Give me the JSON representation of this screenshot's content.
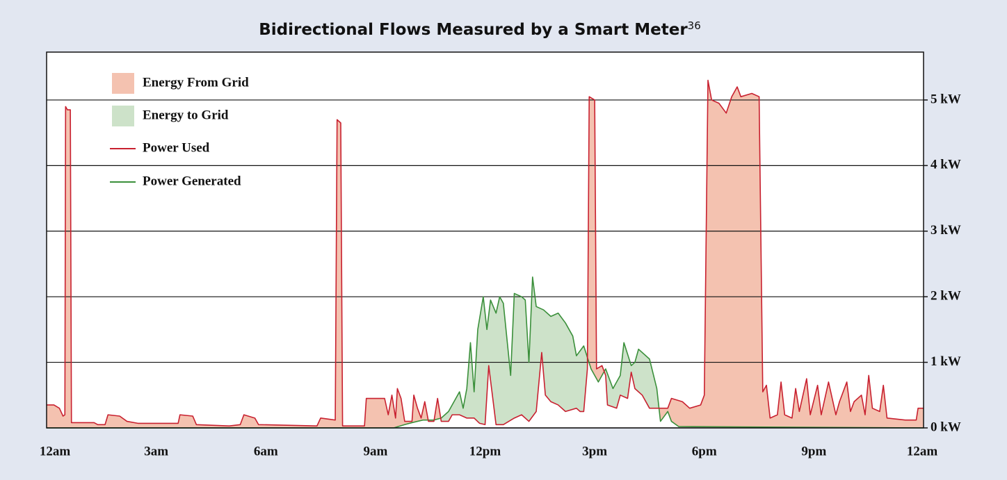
{
  "chart_data": {
    "type": "line",
    "title": "Bidirectional Flows Measured by a Smart Meter",
    "title_note": "36",
    "xlim": [
      0,
      24
    ],
    "xticks": [
      {
        "value": 0,
        "label": "12am"
      },
      {
        "value": 3,
        "label": "3am"
      },
      {
        "value": 6,
        "label": "6am"
      },
      {
        "value": 9,
        "label": "9am"
      },
      {
        "value": 12,
        "label": "12pm"
      },
      {
        "value": 15,
        "label": "3pm"
      },
      {
        "value": 18,
        "label": "6pm"
      },
      {
        "value": 21,
        "label": "9pm"
      },
      {
        "value": 24,
        "label": "12am"
      }
    ],
    "ylim": [
      0,
      5.73
    ],
    "yticks": [
      {
        "value": 0,
        "label": "0 kW"
      },
      {
        "value": 1,
        "label": "1 kW"
      },
      {
        "value": 2,
        "label": "2 kW"
      },
      {
        "value": 3,
        "label": "3 kW"
      },
      {
        "value": 4,
        "label": "4 kW"
      },
      {
        "value": 5,
        "label": "5 kW"
      }
    ],
    "grid": true,
    "areas": [
      {
        "name": "Energy From Grid",
        "color": "#f4c2b0"
      },
      {
        "name": "Energy to Grid",
        "color": "#cde2c9"
      }
    ],
    "series": [
      {
        "name": "Power Used",
        "color": "#c8202f",
        "x": [
          0,
          0.2,
          0.35,
          0.45,
          0.5,
          0.52,
          0.57,
          0.65,
          0.68,
          1.3,
          1.4,
          1.6,
          1.68,
          2.0,
          2.2,
          2.5,
          3.6,
          3.65,
          4.0,
          4.1,
          5.0,
          5.3,
          5.4,
          5.7,
          5.8,
          7.4,
          7.5,
          7.9,
          7.95,
          8.05,
          8.1,
          8.7,
          8.75,
          9.25,
          9.35,
          9.45,
          9.55,
          9.6,
          9.7,
          9.8,
          10.0,
          10.05,
          10.15,
          10.25,
          10.35,
          10.45,
          10.6,
          10.7,
          10.8,
          11.0,
          11.1,
          11.3,
          11.5,
          11.7,
          11.85,
          12.0,
          12.1,
          12.2,
          12.3,
          12.5,
          12.8,
          13.0,
          13.2,
          13.4,
          13.55,
          13.65,
          13.8,
          14.0,
          14.2,
          14.5,
          14.6,
          14.7,
          14.8,
          14.85,
          15.0,
          15.05,
          15.2,
          15.3,
          15.35,
          15.6,
          15.7,
          15.9,
          16.0,
          16.1,
          16.3,
          16.5,
          16.8,
          17.0,
          17.1,
          17.4,
          17.6,
          17.9,
          18.0,
          18.1,
          18.2,
          18.4,
          18.6,
          18.75,
          18.9,
          19.0,
          19.3,
          19.5,
          19.6,
          19.7,
          19.8,
          20.0,
          20.1,
          20.2,
          20.4,
          20.5,
          20.6,
          20.8,
          20.9,
          21.1,
          21.2,
          21.4,
          21.6,
          21.7,
          21.9,
          22.0,
          22.1,
          22.3,
          22.4,
          22.5,
          22.6,
          22.8,
          22.9,
          23.0,
          23.5,
          23.8,
          23.85,
          24.0
        ],
        "values": [
          0.35,
          0.35,
          0.3,
          0.18,
          0.2,
          4.9,
          4.85,
          4.85,
          0.08,
          0.08,
          0.05,
          0.05,
          0.2,
          0.18,
          0.1,
          0.07,
          0.07,
          0.2,
          0.18,
          0.05,
          0.03,
          0.05,
          0.2,
          0.15,
          0.05,
          0.03,
          0.15,
          0.12,
          4.7,
          4.65,
          0.03,
          0.03,
          0.45,
          0.45,
          0.2,
          0.5,
          0.15,
          0.6,
          0.45,
          0.1,
          0.1,
          0.5,
          0.3,
          0.15,
          0.4,
          0.1,
          0.1,
          0.45,
          0.1,
          0.1,
          0.2,
          0.2,
          0.15,
          0.15,
          0.07,
          0.05,
          0.95,
          0.5,
          0.05,
          0.05,
          0.15,
          0.2,
          0.1,
          0.25,
          1.15,
          0.5,
          0.4,
          0.35,
          0.25,
          0.3,
          0.25,
          0.25,
          0.9,
          5.05,
          5.0,
          0.9,
          0.95,
          0.8,
          0.35,
          0.3,
          0.5,
          0.45,
          0.85,
          0.6,
          0.5,
          0.3,
          0.3,
          0.3,
          0.45,
          0.4,
          0.3,
          0.35,
          0.5,
          5.3,
          5.0,
          4.95,
          4.8,
          5.05,
          5.2,
          5.05,
          5.1,
          5.05,
          0.55,
          0.65,
          0.15,
          0.2,
          0.7,
          0.2,
          0.15,
          0.6,
          0.25,
          0.75,
          0.2,
          0.65,
          0.2,
          0.7,
          0.2,
          0.4,
          0.7,
          0.25,
          0.4,
          0.5,
          0.2,
          0.8,
          0.3,
          0.25,
          0.65,
          0.15,
          0.12,
          0.12,
          0.3,
          0.3
        ]
      },
      {
        "name": "Power Generated",
        "color": "#3a8f3a",
        "x": [
          0,
          9.5,
          9.8,
          10.0,
          10.3,
          10.6,
          10.8,
          11.0,
          11.2,
          11.3,
          11.4,
          11.5,
          11.6,
          11.7,
          11.8,
          11.95,
          12.05,
          12.15,
          12.3,
          12.4,
          12.5,
          12.7,
          12.8,
          13.0,
          13.1,
          13.2,
          13.3,
          13.4,
          13.6,
          13.8,
          14.0,
          14.2,
          14.4,
          14.5,
          14.7,
          14.9,
          15.1,
          15.3,
          15.5,
          15.7,
          15.8,
          16.0,
          16.1,
          16.2,
          16.5,
          16.7,
          16.8,
          17.0,
          17.1,
          17.3,
          24
        ],
        "values": [
          0,
          0,
          0.05,
          0.08,
          0.12,
          0.12,
          0.15,
          0.25,
          0.45,
          0.55,
          0.3,
          0.6,
          1.3,
          0.55,
          1.5,
          2.0,
          1.5,
          1.95,
          1.75,
          2.0,
          1.9,
          0.8,
          2.05,
          2.0,
          1.95,
          1.0,
          2.3,
          1.85,
          1.8,
          1.7,
          1.75,
          1.6,
          1.4,
          1.1,
          1.25,
          0.9,
          0.7,
          0.9,
          0.6,
          0.8,
          1.3,
          0.95,
          1.0,
          1.2,
          1.05,
          0.6,
          0.1,
          0.25,
          0.1,
          0.02,
          0
        ]
      }
    ]
  }
}
